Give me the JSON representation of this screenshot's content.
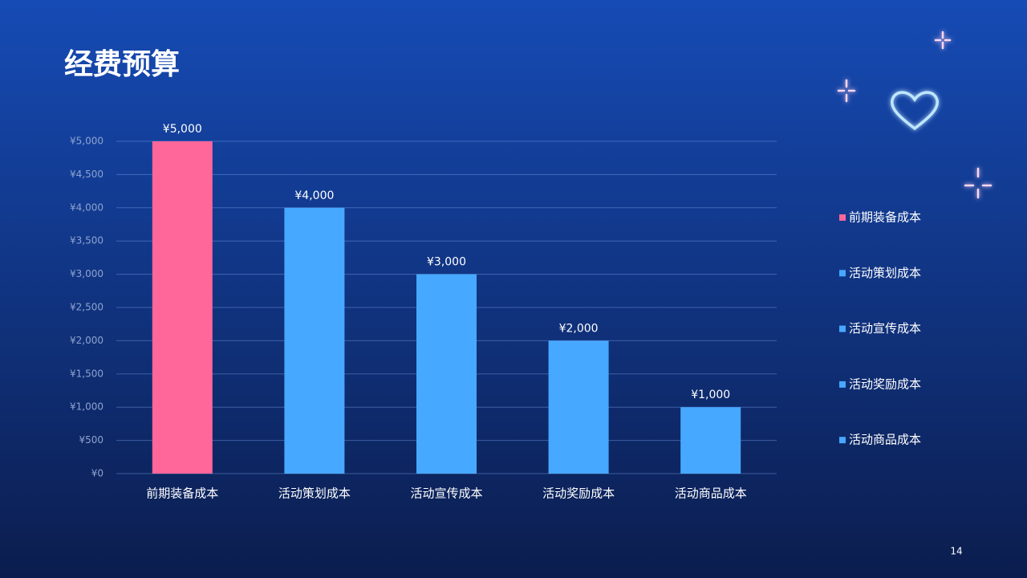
{
  "chart_data": {
    "type": "bar",
    "title": "经费预算",
    "categories": [
      "前期装备成本",
      "活动策划成本",
      "活动宣传成本",
      "活动奖励成本",
      "活动商品成本"
    ],
    "values": [
      5000,
      4000,
      3000,
      2000,
      1000
    ],
    "value_labels": [
      "¥5,000",
      "¥4,000",
      "¥3,000",
      "¥2,000",
      "¥1,000"
    ],
    "colors": [
      "#ff6699",
      "#47a8ff",
      "#47a8ff",
      "#47a8ff",
      "#47a8ff"
    ],
    "ylim": [
      0,
      5000
    ],
    "yticks": [
      {
        "value": 0,
        "label": "¥0"
      },
      {
        "value": 500,
        "label": "¥500"
      },
      {
        "value": 1000,
        "label": "¥1,000"
      },
      {
        "value": 1500,
        "label": "¥1,500"
      },
      {
        "value": 2000,
        "label": "¥2,000"
      },
      {
        "value": 2500,
        "label": "¥2,500"
      },
      {
        "value": 3000,
        "label": "¥3,000"
      },
      {
        "value": 3500,
        "label": "¥3,500"
      },
      {
        "value": 4000,
        "label": "¥4,000"
      },
      {
        "value": 4500,
        "label": "¥4,500"
      },
      {
        "value": 5000,
        "label": "¥5,000"
      }
    ],
    "grid": true,
    "legend": "right"
  },
  "slide": {
    "page_number": "14"
  }
}
